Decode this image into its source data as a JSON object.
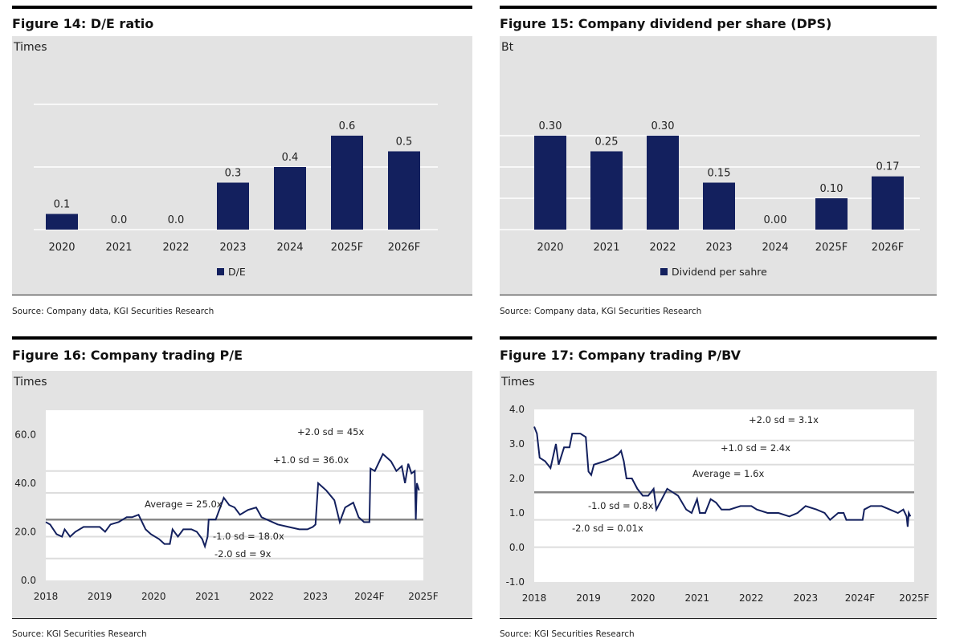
{
  "colors": {
    "bar": "#13205e",
    "line": "#13205e",
    "band": "#888888",
    "grid": "#dddddd",
    "panel": "#e3e3e3"
  },
  "chart_data": [
    {
      "id": "fig14",
      "type": "bar",
      "title": "Figure 14: D/E ratio",
      "ylabel": "Times",
      "source": "Source: Company data, KGI Securities Research",
      "categories": [
        "2020",
        "2021",
        "2022",
        "2023",
        "2024",
        "2025F",
        "2026F"
      ],
      "series": [
        {
          "name": "D/E",
          "values": [
            0.1,
            0.0,
            0.0,
            0.3,
            0.4,
            0.6,
            0.5
          ]
        }
      ],
      "data_labels": [
        "0.1",
        "0.0",
        "0.0",
        "0.3",
        "0.4",
        "0.6",
        "0.5"
      ],
      "ylim": [
        0,
        0.8
      ],
      "gridlines": [
        0.4,
        0.8
      ],
      "legend": "bottom"
    },
    {
      "id": "fig15",
      "type": "bar",
      "title": "Figure 15: Company dividend per share (DPS)",
      "ylabel": "Bt",
      "source": "Source: Company data, KGI Securities Research",
      "categories": [
        "2020",
        "2021",
        "2022",
        "2023",
        "2024",
        "2025F",
        "2026F"
      ],
      "series": [
        {
          "name": "Dividend per sahre",
          "values": [
            0.3,
            0.25,
            0.3,
            0.15,
            0.0,
            0.1,
            0.17
          ]
        }
      ],
      "data_labels": [
        "0.30",
        "0.25",
        "0.30",
        "0.15",
        "0.00",
        "0.10",
        "0.17"
      ],
      "ylim": [
        0,
        0.4
      ],
      "gridlines": [
        0.1,
        0.2,
        0.3
      ],
      "legend": "bottom"
    },
    {
      "id": "fig16",
      "type": "line",
      "title": "Figure 16: Company trading P/E",
      "ylabel": "Times",
      "source": "Source: KGI Securities Research",
      "xticks": [
        "2018",
        "2019",
        "2020",
        "2021",
        "2022",
        "2023",
        "2024F",
        "2025F"
      ],
      "xlim": [
        2018,
        2025
      ],
      "yticks": [
        "0.0",
        "20.0",
        "40.0",
        "60.0"
      ],
      "ytick_values": [
        0,
        20,
        40,
        60
      ],
      "ylim": [
        0,
        70
      ],
      "bands": [
        {
          "label": "+2.0 sd = 45x",
          "value": 45
        },
        {
          "label": "+1.0 sd = 36.0x",
          "value": 36
        },
        {
          "label": "Average = 25.0x",
          "value": 25,
          "average": true
        },
        {
          "label": "-1.0 sd = 18.0x",
          "value": 18
        },
        {
          "label": "-2.0 sd = 9x",
          "value": 9
        }
      ],
      "series": [
        {
          "x": [
            2018.0,
            2018.08,
            2018.2,
            2018.3,
            2018.35,
            2018.45,
            2018.55,
            2018.7,
            2018.85,
            2019.0,
            2019.1,
            2019.2,
            2019.35,
            2019.5,
            2019.6,
            2019.72,
            2019.85,
            2019.95,
            2020.1,
            2020.2,
            2020.3,
            2020.35,
            2020.45,
            2020.55,
            2020.7,
            2020.8,
            2020.9,
            2020.95,
            2021.0,
            2021.02,
            2021.15,
            2021.3,
            2021.4,
            2021.5,
            2021.6,
            2021.75,
            2021.9,
            2022.0,
            2022.1,
            2022.3,
            2022.5,
            2022.7,
            2022.85,
            2022.95,
            2023.0,
            2023.05,
            2023.2,
            2023.35,
            2023.45,
            2023.55,
            2023.7,
            2023.8,
            2023.9,
            2024.0,
            2024.02,
            2024.1,
            2024.25,
            2024.4,
            2024.5,
            2024.6,
            2024.66,
            2024.72,
            2024.78,
            2024.84,
            2024.86,
            2024.88,
            2024.92
          ],
          "y": [
            24,
            23,
            19,
            18,
            21,
            18,
            20,
            22,
            22,
            22,
            20,
            23,
            24,
            26,
            26,
            27,
            21,
            19,
            17,
            15,
            15,
            21,
            18,
            21,
            21,
            20,
            17,
            14,
            18,
            25,
            25,
            34,
            31,
            30,
            27,
            29,
            30,
            26,
            25,
            23,
            22,
            21,
            21,
            22,
            23,
            40,
            37,
            33,
            24,
            30,
            32,
            26,
            24,
            24,
            46,
            45,
            52,
            49,
            45,
            47,
            40,
            48,
            44,
            45,
            25,
            40,
            37
          ]
        }
      ]
    },
    {
      "id": "fig17",
      "type": "line",
      "title": "Figure 17: Company trading P/BV",
      "ylabel": "Times",
      "source": "Source: KGI Securities Research",
      "xticks": [
        "2018",
        "2019",
        "2020",
        "2021",
        "2022",
        "2023",
        "2024F",
        "2025F"
      ],
      "xlim": [
        2018,
        2025
      ],
      "yticks": [
        "-1.0",
        "0.0",
        "1.0",
        "2.0",
        "3.0",
        "4.0"
      ],
      "ytick_values": [
        -1,
        0,
        1,
        2,
        3,
        4
      ],
      "ylim": [
        -1,
        4
      ],
      "bands": [
        {
          "label": "+2.0 sd = 3.1x",
          "value": 3.1
        },
        {
          "label": "+1.0 sd = 2.4x",
          "value": 2.4
        },
        {
          "label": "Average = 1.6x",
          "value": 1.6,
          "average": true
        },
        {
          "label": "-1.0 sd = 0.8x",
          "value": 0.8
        },
        {
          "label": "-2.0 sd = 0.01x",
          "value": 0.01
        }
      ],
      "series": [
        {
          "x": [
            2018.0,
            2018.05,
            2018.1,
            2018.2,
            2018.3,
            2018.4,
            2018.45,
            2018.55,
            2018.65,
            2018.7,
            2018.85,
            2018.95,
            2019.0,
            2019.05,
            2019.1,
            2019.3,
            2019.45,
            2019.55,
            2019.6,
            2019.65,
            2019.7,
            2019.8,
            2019.9,
            2020.0,
            2020.1,
            2020.2,
            2020.25,
            2020.35,
            2020.45,
            2020.55,
            2020.65,
            2020.8,
            2020.9,
            2021.0,
            2021.05,
            2021.15,
            2021.25,
            2021.35,
            2021.45,
            2021.6,
            2021.8,
            2022.0,
            2022.1,
            2022.3,
            2022.5,
            2022.7,
            2022.85,
            2023.0,
            2023.2,
            2023.35,
            2023.45,
            2023.6,
            2023.7,
            2023.75,
            2023.95,
            2024.05,
            2024.08,
            2024.2,
            2024.4,
            2024.55,
            2024.7,
            2024.8,
            2024.86,
            2024.88,
            2024.9,
            2024.93
          ],
          "y": [
            3.5,
            3.3,
            2.6,
            2.5,
            2.3,
            3.0,
            2.4,
            2.9,
            2.9,
            3.3,
            3.3,
            3.2,
            2.2,
            2.1,
            2.4,
            2.5,
            2.6,
            2.7,
            2.8,
            2.5,
            2.0,
            2.0,
            1.7,
            1.5,
            1.5,
            1.7,
            1.1,
            1.4,
            1.7,
            1.6,
            1.5,
            1.1,
            1.0,
            1.4,
            1.0,
            1.0,
            1.4,
            1.3,
            1.1,
            1.1,
            1.2,
            1.2,
            1.1,
            1.0,
            1.0,
            0.9,
            1.0,
            1.2,
            1.1,
            1.0,
            0.8,
            1.0,
            1.0,
            0.8,
            0.8,
            0.8,
            1.1,
            1.2,
            1.2,
            1.1,
            1.0,
            1.1,
            0.9,
            0.6,
            1.0,
            0.9
          ]
        }
      ]
    }
  ]
}
